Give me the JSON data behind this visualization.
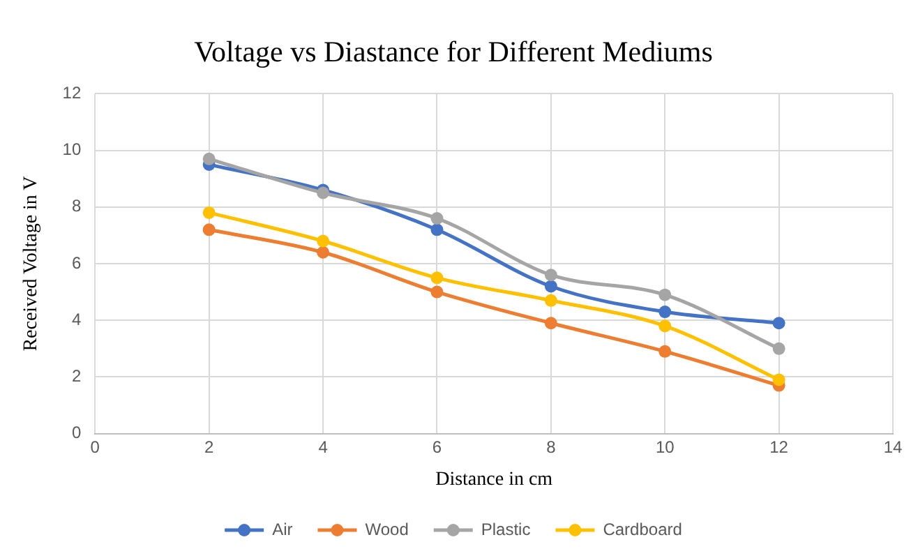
{
  "chart_data": {
    "type": "line",
    "title": "Voltage vs Diastance for Different Mediums",
    "xlabel": "Distance in cm",
    "ylabel": "Received Voltage in V",
    "x": [
      2,
      4,
      6,
      8,
      10,
      12
    ],
    "series": [
      {
        "name": "Air",
        "color": "#4472c4",
        "values": [
          9.5,
          8.6,
          7.2,
          5.2,
          4.3,
          3.9
        ]
      },
      {
        "name": "Wood",
        "color": "#ed7d31",
        "values": [
          7.2,
          6.4,
          5.0,
          3.9,
          2.9,
          1.7
        ]
      },
      {
        "name": "Plastic",
        "color": "#a5a5a5",
        "values": [
          9.7,
          8.5,
          7.6,
          5.6,
          4.9,
          3.0
        ]
      },
      {
        "name": "Cardboard",
        "color": "#ffc000",
        "values": [
          7.8,
          6.8,
          5.5,
          4.7,
          3.8,
          1.9
        ]
      }
    ],
    "xlim": [
      0,
      14
    ],
    "xticks": [
      0,
      2,
      4,
      6,
      8,
      10,
      12,
      14
    ],
    "ylim": [
      0,
      12
    ],
    "yticks": [
      0,
      2,
      4,
      6,
      8,
      10,
      12
    ],
    "grid": true,
    "legend": "bottom",
    "marker": "circle",
    "line_style": "solid"
  }
}
